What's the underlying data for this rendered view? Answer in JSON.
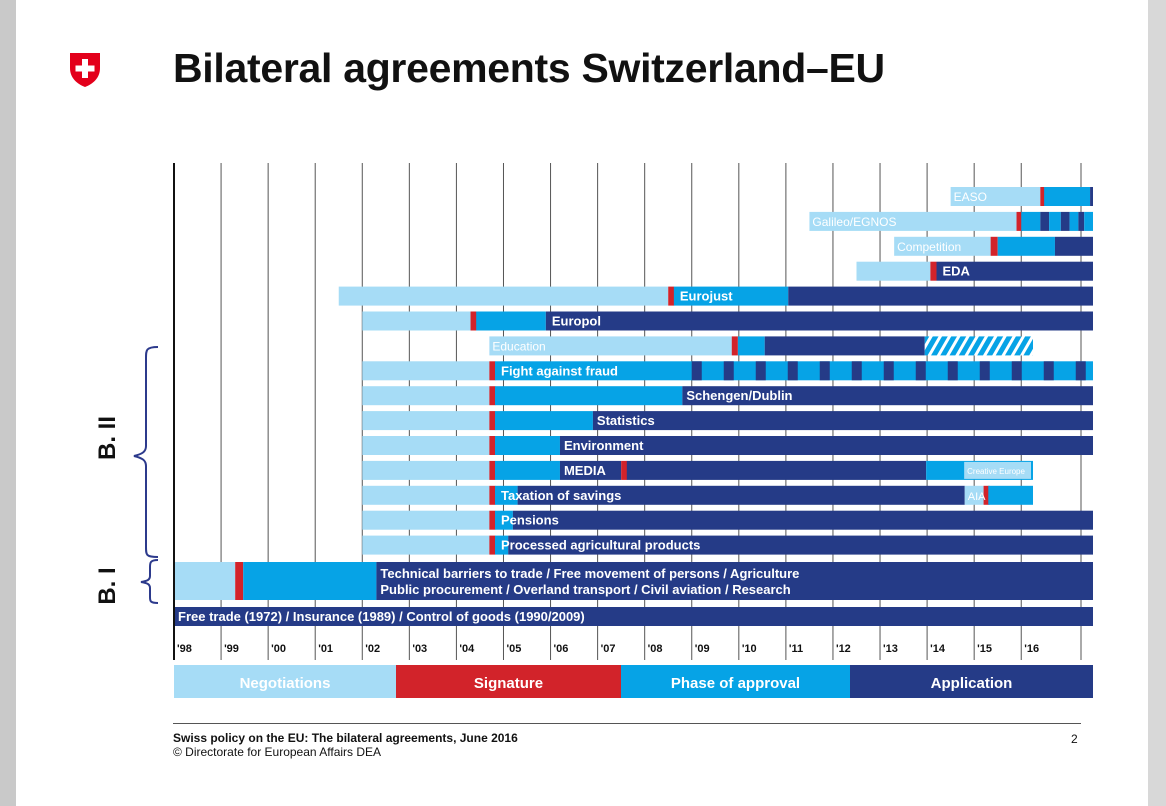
{
  "title": "Bilateral agreements Switzerland–EU",
  "footer": {
    "line1": "Swiss policy on the EU: The bilateral agreements, June 2016",
    "line2": "© Directorate for European Affairs DEA",
    "page": "2"
  },
  "group_labels": {
    "b2": "B. II",
    "b1": "B. I"
  },
  "chart_data": {
    "type": "gantt",
    "colors": {
      "Negotiations": "#a6dcf6",
      "Signature": "#d2232a",
      "Phase of approval": "#06a3e6",
      "Application": "#253b87"
    },
    "legend": [
      {
        "label": "Negotiations",
        "color": "#a6dcf6"
      },
      {
        "label": "Signature",
        "color": "#d2232a"
      },
      {
        "label": "Phase of approval",
        "color": "#06a3e6"
      },
      {
        "label": "Application",
        "color": "#253b87"
      }
    ],
    "x_ticks": [
      "'98",
      "'99",
      "'00",
      "'01",
      "'02",
      "'03",
      "'04",
      "'05",
      "'06",
      "'07",
      "'08",
      "'09",
      "'10",
      "'11",
      "'12",
      "'13",
      "'14",
      "'15",
      "'16"
    ],
    "x_range": [
      1998,
      2016.25
    ],
    "rows": [
      {
        "label": "EASO",
        "segments": [
          [
            "n",
            2014.5,
            2016.5
          ],
          [
            "s",
            2016.5,
            2016.63
          ],
          [
            "p",
            2016.63,
            2018.2
          ],
          [
            "a",
            2018.2,
            2018.3
          ]
        ]
      },
      {
        "label": "Galileo/EGNOS",
        "segments": [
          [
            "n",
            2011.5,
            2015.9
          ],
          [
            "s",
            2015.9,
            2016.0
          ],
          [
            "p",
            2016.0,
            2016.5
          ],
          [
            "a",
            2016.5,
            2016.8
          ],
          [
            "p",
            2016.8,
            2017.2
          ],
          [
            "a",
            2017.2,
            2017.5
          ],
          [
            "p",
            2017.5,
            2017.8
          ],
          [
            "a",
            2017.8,
            2018.0
          ],
          [
            "p",
            2018.0,
            2018.3
          ]
        ]
      },
      {
        "label": "Competition",
        "segments": [
          [
            "n",
            2013.3,
            2015.35
          ],
          [
            "s",
            2015.35,
            2015.5
          ],
          [
            "p",
            2015.5,
            2017.0
          ],
          [
            "a",
            2017.0,
            2018.3
          ]
        ]
      },
      {
        "label": "EDA",
        "segments": [
          [
            "n",
            2012.5,
            2014.07
          ],
          [
            "s",
            2014.07,
            2014.2
          ],
          [
            "a",
            2014.2,
            2018.3
          ]
        ]
      },
      {
        "label": "Eurojust",
        "segments": [
          [
            "n",
            2001.5,
            2008.5
          ],
          [
            "s",
            2008.5,
            2008.62
          ],
          [
            "p",
            2008.62,
            2011.05
          ],
          [
            "a",
            2011.05,
            2018.3
          ]
        ]
      },
      {
        "label": "Europol",
        "segments": [
          [
            "n",
            2002.0,
            2004.3
          ],
          [
            "s",
            2004.3,
            2004.42
          ],
          [
            "p",
            2004.42,
            2005.9
          ],
          [
            "a",
            2005.9,
            2018.3
          ]
        ]
      },
      {
        "label": "Education",
        "segments": [
          [
            "n",
            2004.7,
            2009.85
          ],
          [
            "s",
            2009.85,
            2009.98
          ],
          [
            "p",
            2009.98,
            2010.55
          ],
          [
            "a",
            2010.55,
            2013.95
          ],
          [
            "h",
            2013.95,
            2016.25
          ]
        ]
      },
      {
        "label": "Fight against fraud",
        "segments": [
          [
            "n",
            2002.0,
            2004.7
          ],
          [
            "s",
            2004.7,
            2004.82
          ],
          [
            "p",
            2004.82,
            2009.0
          ],
          [
            "q",
            2009.0,
            2018.3
          ]
        ]
      },
      {
        "label": "Schengen/Dublin",
        "segments": [
          [
            "n",
            2002.0,
            2004.7
          ],
          [
            "s",
            2004.7,
            2004.82
          ],
          [
            "p",
            2004.82,
            2008.8
          ],
          [
            "a",
            2008.8,
            2018.3
          ]
        ]
      },
      {
        "label": "Statistics",
        "segments": [
          [
            "n",
            2002.0,
            2004.7
          ],
          [
            "s",
            2004.7,
            2004.82
          ],
          [
            "p",
            2004.82,
            2006.9
          ],
          [
            "a",
            2006.9,
            2018.3
          ]
        ]
      },
      {
        "label": "Environment",
        "segments": [
          [
            "n",
            2002.0,
            2004.7
          ],
          [
            "s",
            2004.7,
            2004.82
          ],
          [
            "p",
            2004.82,
            2006.2
          ],
          [
            "a",
            2006.2,
            2018.3
          ]
        ]
      },
      {
        "label": "MEDIA",
        "segments": [
          [
            "n",
            2002.0,
            2004.7
          ],
          [
            "s",
            2004.7,
            2004.82
          ],
          [
            "p",
            2004.82,
            2006.2
          ],
          [
            "a",
            2006.2,
            2007.5
          ],
          [
            "s",
            2007.5,
            2007.62
          ],
          [
            "a",
            2007.62,
            2013.98
          ],
          [
            "g",
            2013.98,
            2016.25
          ]
        ]
      },
      {
        "label": "Taxation of savings",
        "segments": [
          [
            "n",
            2002.0,
            2004.7
          ],
          [
            "s",
            2004.7,
            2004.82
          ],
          [
            "p",
            2004.82,
            2005.3
          ],
          [
            "a",
            2005.3,
            2014.8
          ],
          [
            "n",
            2014.8,
            2015.2
          ],
          [
            "s",
            2015.2,
            2015.3
          ],
          [
            "p",
            2015.3,
            2016.25
          ]
        ]
      },
      {
        "label": "Pensions",
        "segments": [
          [
            "n",
            2002.0,
            2004.7
          ],
          [
            "s",
            2004.7,
            2004.82
          ],
          [
            "p",
            2004.82,
            2005.2
          ],
          [
            "a",
            2005.2,
            2018.3
          ]
        ]
      },
      {
        "label": "Processed agricultural products",
        "segments": [
          [
            "n",
            2002.0,
            2004.7
          ],
          [
            "s",
            2004.7,
            2004.82
          ],
          [
            "p",
            2004.82,
            2005.1
          ],
          [
            "a",
            2005.1,
            2018.3
          ]
        ]
      },
      {
        "label": "Technical barriers to trade / Free movement of persons / Agriculture",
        "label2": "Public procurement / Overland transport / Civil aviation / Research",
        "segments": [
          [
            "n",
            1998.0,
            1999.3
          ],
          [
            "s",
            1999.3,
            1999.47
          ],
          [
            "p",
            1999.47,
            2002.3
          ],
          [
            "a",
            2002.3,
            2018.3
          ]
        ]
      },
      {
        "label": "Free trade (1972) / Insurance (1989) / Control of goods (1990/2009)",
        "segments": [
          [
            "a",
            1998.0,
            2018.3
          ]
        ]
      }
    ],
    "inner_labels": {
      "MEDIA": "Creative Europe",
      "Taxation of savings": "AIA"
    }
  }
}
